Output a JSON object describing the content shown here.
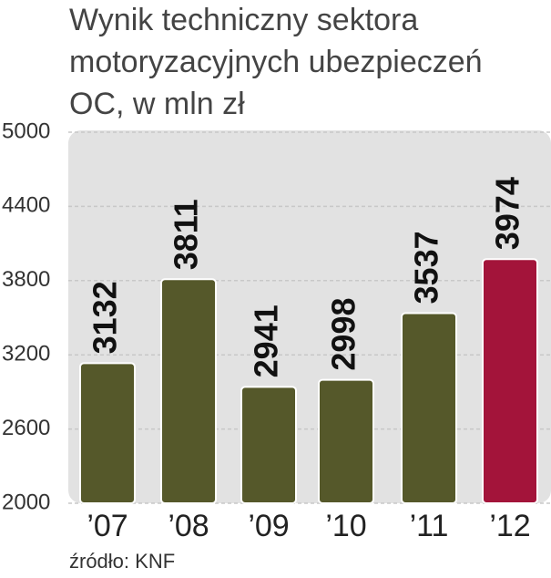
{
  "chart_data": {
    "type": "bar",
    "title": [
      "Wynik techniczny sektora",
      "motoryzacyjnych ubezpieczeń",
      "OC, w mln zł"
    ],
    "categories": [
      "’07",
      "’08",
      "’09",
      "’10",
      "’11",
      "’12"
    ],
    "values": [
      3132,
      3811,
      2941,
      2998,
      3537,
      3974
    ],
    "colors": [
      "#55582a",
      "#55582a",
      "#55582a",
      "#55582a",
      "#55582a",
      "#a3143a"
    ],
    "ylim": [
      2000,
      5000
    ],
    "yticks": [
      2000,
      2600,
      3200,
      3800,
      4400,
      5000
    ],
    "grid": true,
    "source": "źródło: KNF"
  }
}
